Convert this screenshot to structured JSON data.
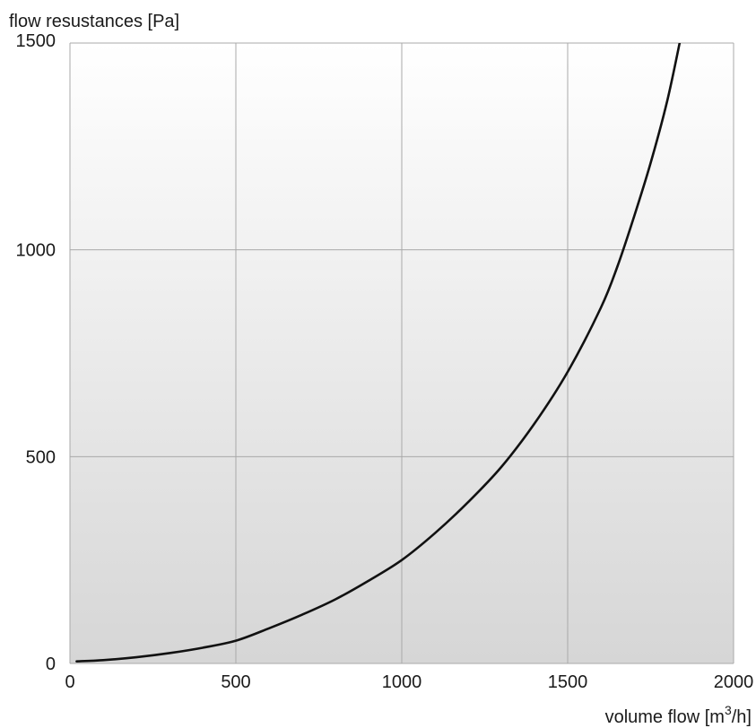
{
  "chart_data": {
    "type": "line",
    "title": "",
    "ylabel": "flow resustances  [Pa]",
    "xlabel_main": "volume flow  [m",
    "xlabel_sup": "3",
    "xlabel_end": "/h]",
    "xlim": [
      0,
      2000
    ],
    "ylim": [
      0,
      1500
    ],
    "x_ticks": [
      0,
      500,
      1000,
      1500,
      2000
    ],
    "y_ticks": [
      0,
      500,
      1000,
      1500
    ],
    "grid": true,
    "colors": {
      "line": "#111111",
      "grid": "#a9a9a9",
      "plot_bg_top": "#ffffff",
      "plot_bg_bottom": "#d6d6d6"
    },
    "series": [
      {
        "x": [
          20,
          100,
          200,
          300,
          400,
          500,
          600,
          700,
          800,
          900,
          1000,
          1100,
          1200,
          1300,
          1400,
          1500,
          1600,
          1650,
          1700,
          1750,
          1800,
          1840
        ],
        "y": [
          5,
          8,
          15,
          25,
          38,
          55,
          85,
          118,
          155,
          200,
          250,
          315,
          390,
          475,
          580,
          705,
          860,
          960,
          1080,
          1210,
          1360,
          1510
        ]
      }
    ]
  }
}
